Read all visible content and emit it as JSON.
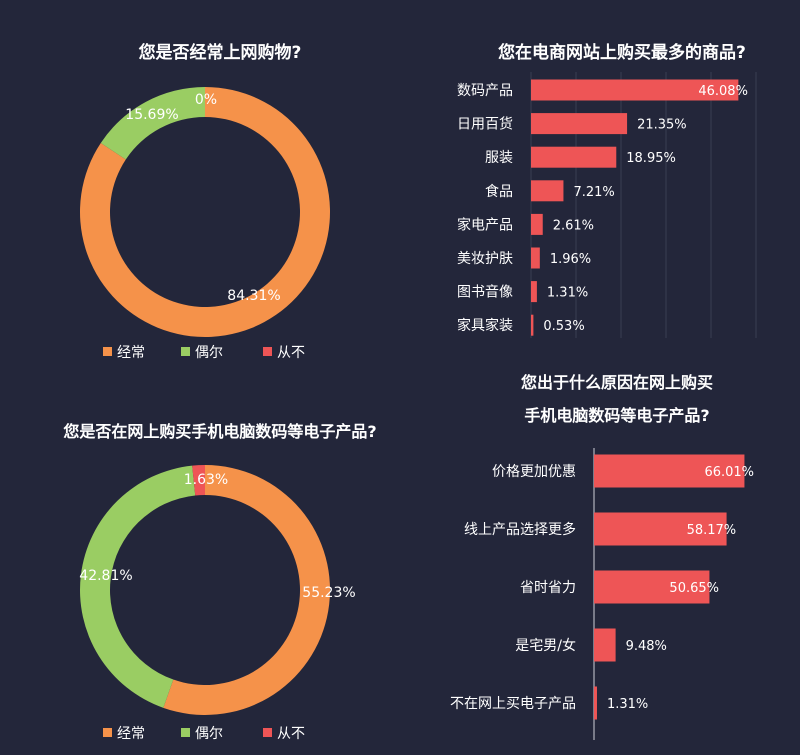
{
  "colors": {
    "often": "#f5924a",
    "sometimes": "#9acd63",
    "never": "#ee5556",
    "bar": "#ee5556",
    "background": "#23263a"
  },
  "legend_labels": [
    "经常",
    "偶尔",
    "从不"
  ],
  "chart_data": [
    {
      "type": "pie",
      "title": "您是否经常上网购物?",
      "categories": [
        "经常",
        "偶尔",
        "从不"
      ],
      "values": [
        84.31,
        15.69,
        0
      ],
      "labels": [
        "84.31%",
        "15.69%",
        "0%"
      ]
    },
    {
      "type": "bar",
      "orientation": "horizontal",
      "title": "您在电商网站上购买最多的商品?",
      "categories": [
        "数码产品",
        "日用百货",
        "服装",
        "食品",
        "家电产品",
        "美妆护肤",
        "图书音像",
        "家具家装"
      ],
      "values": [
        46.08,
        21.35,
        18.95,
        7.21,
        2.61,
        1.96,
        1.31,
        0.53
      ],
      "labels": [
        "46.08%",
        "21.35%",
        "18.95%",
        "7.21%",
        "2.61%",
        "1.96%",
        "1.31%",
        "0.53%"
      ],
      "xlim": [
        0,
        60
      ],
      "grid": true
    },
    {
      "type": "pie",
      "title": "您是否在网上购买手机电脑数码等电子产品?",
      "categories": [
        "经常",
        "偶尔",
        "从不"
      ],
      "values": [
        55.23,
        42.81,
        1.63
      ],
      "labels": [
        "55.23%",
        "42.81%",
        "1.63%"
      ]
    },
    {
      "type": "bar",
      "orientation": "horizontal",
      "title_lines": [
        "您出于什么原因在网上购买",
        "手机电脑数码等电子产品?"
      ],
      "categories": [
        "价格更加优惠",
        "线上产品选择更多",
        "省时省力",
        "是宅男/女",
        "不在网上买电子产品"
      ],
      "values": [
        66.01,
        58.17,
        50.65,
        9.48,
        1.31
      ],
      "labels": [
        "66.01%",
        "58.17%",
        "50.65%",
        "9.48%",
        "1.31%"
      ],
      "xlim": [
        0,
        86
      ]
    }
  ]
}
